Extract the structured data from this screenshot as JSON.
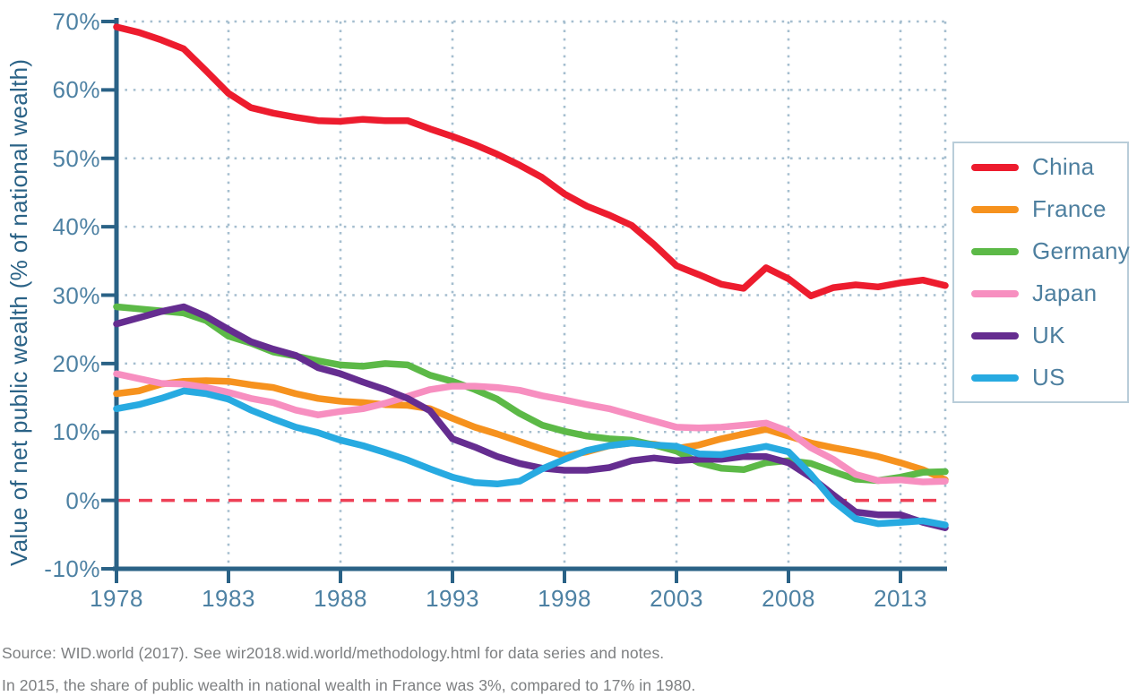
{
  "chart_data": {
    "type": "line",
    "title": "",
    "xlabel": "",
    "ylabel": "Value of net public wealth (% of national wealth)",
    "xlim": [
      1978,
      2015
    ],
    "ylim": [
      -10,
      70
    ],
    "x_start_year": 1978,
    "x_ticks": [
      1978,
      1983,
      1988,
      1993,
      1998,
      2003,
      2008,
      2013
    ],
    "y_ticks": [
      70,
      60,
      50,
      40,
      30,
      20,
      10,
      0,
      -10
    ],
    "y_tick_suffix": "%",
    "grid": "dotted",
    "legend_position": "right",
    "zero_line": {
      "value": 0,
      "style": "dashed"
    },
    "series": [
      {
        "name": "China",
        "color": "#ed1c2e",
        "values": [
          69.2,
          68.4,
          67.3,
          66.0,
          62.8,
          59.5,
          57.4,
          56.6,
          56.0,
          55.5,
          55.4,
          55.7,
          55.5,
          55.5,
          54.3,
          53.2,
          52.0,
          50.6,
          49.0,
          47.2,
          44.8,
          43.0,
          41.7,
          40.2,
          37.4,
          34.3,
          33.0,
          31.6,
          31.0,
          34.0,
          32.4,
          29.9,
          31.1,
          31.5,
          31.2,
          31.8,
          32.2,
          31.4
        ]
      },
      {
        "name": "France",
        "color": "#f6921e",
        "values": [
          15.6,
          16.0,
          17.0,
          17.4,
          17.5,
          17.4,
          16.9,
          16.5,
          15.6,
          14.9,
          14.5,
          14.3,
          14.0,
          13.9,
          13.4,
          12.0,
          10.7,
          9.7,
          8.6,
          7.5,
          6.5,
          7.1,
          8.0,
          8.4,
          8.2,
          7.6,
          8.1,
          9.0,
          9.7,
          10.4,
          9.4,
          8.4,
          7.7,
          7.1,
          6.4,
          5.5,
          4.5,
          3.0
        ]
      },
      {
        "name": "Germany",
        "color": "#5cb947",
        "values": [
          28.3,
          28.0,
          27.7,
          27.4,
          26.3,
          24.0,
          23.0,
          21.7,
          21.1,
          20.4,
          19.8,
          19.6,
          20.0,
          19.8,
          18.3,
          17.4,
          16.2,
          14.8,
          12.7,
          11.0,
          10.1,
          9.4,
          9.0,
          8.8,
          8.1,
          7.2,
          5.5,
          4.7,
          4.5,
          5.5,
          5.8,
          5.4,
          4.2,
          3.1,
          2.9,
          3.4,
          4.1,
          4.2
        ]
      },
      {
        "name": "Japan",
        "color": "#f78fc0",
        "values": [
          18.5,
          17.8,
          17.1,
          17.0,
          16.5,
          15.8,
          14.9,
          14.3,
          13.2,
          12.5,
          13.0,
          13.4,
          14.2,
          15.2,
          16.2,
          16.7,
          16.7,
          16.5,
          16.1,
          15.3,
          14.7,
          14.0,
          13.4,
          12.5,
          11.6,
          10.7,
          10.6,
          10.7,
          11.0,
          11.3,
          10.1,
          7.7,
          6.0,
          3.8,
          2.9,
          3.0,
          2.7,
          2.8
        ]
      },
      {
        "name": "UK",
        "color": "#652d90",
        "values": [
          25.8,
          26.7,
          27.6,
          28.3,
          26.9,
          25.0,
          23.2,
          22.1,
          21.2,
          19.4,
          18.5,
          17.3,
          16.2,
          14.9,
          13.1,
          9.0,
          7.8,
          6.4,
          5.4,
          4.7,
          4.4,
          4.4,
          4.8,
          5.8,
          6.2,
          5.8,
          6.0,
          6.0,
          6.4,
          6.4,
          5.5,
          3.4,
          0.8,
          -1.7,
          -2.1,
          -2.1,
          -3.2,
          -4.0
        ]
      },
      {
        "name": "US",
        "color": "#27aae1",
        "values": [
          13.4,
          14.0,
          14.9,
          16.0,
          15.6,
          14.8,
          13.2,
          11.9,
          10.7,
          9.9,
          8.8,
          8.0,
          7.0,
          5.9,
          4.6,
          3.4,
          2.6,
          2.4,
          2.8,
          4.6,
          6.0,
          7.3,
          8.0,
          8.4,
          8.1,
          7.9,
          6.8,
          6.7,
          7.3,
          7.9,
          7.1,
          3.8,
          -0.1,
          -2.7,
          -3.4,
          -3.2,
          -3.0,
          -3.6
        ]
      }
    ],
    "colors": {
      "axis": "#2a6286",
      "tick_label": "#4d81a3",
      "grid": "#a5becf",
      "zero_line": "#ee4056",
      "legend_border": "#b9cdd9",
      "legend_text": "#4d7f9f",
      "footer_text": "#7d7f81"
    }
  },
  "footer": {
    "source_line": "Source: WID.world (2017). See wir2018.wid.world/methodology.html for data series and notes.",
    "note_line": "In 2015, the share of public wealth in national wealth in France was 3%, compared to 17% in 1980."
  }
}
